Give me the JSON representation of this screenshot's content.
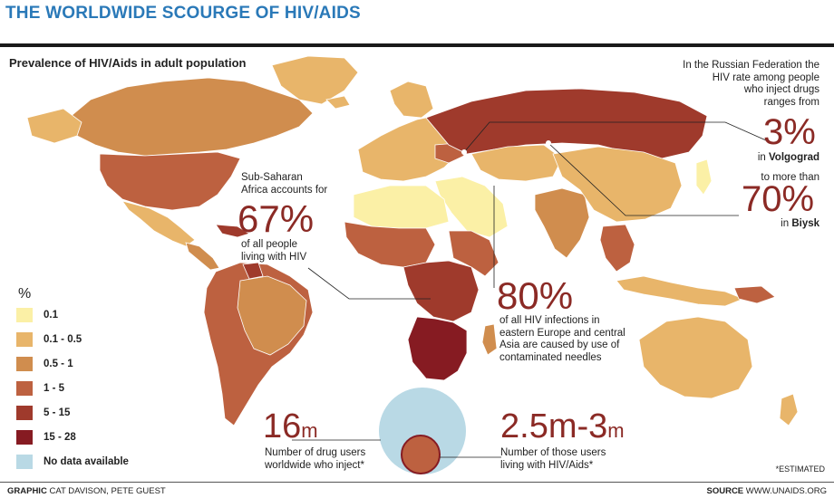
{
  "title": "THE WORLDWIDE SCOURGE OF HIV/AIDS",
  "subtitle": "Prevalence of HIV/Aids in adult population",
  "legend": {
    "unit": "%",
    "items": [
      {
        "label": "0.1",
        "color": "#fbf0a6"
      },
      {
        "label": "0.1 - 0.5",
        "color": "#e8b56a"
      },
      {
        "label": "0.5 - 1",
        "color": "#d08d4e"
      },
      {
        "label": "1 - 5",
        "color": "#bd6140"
      },
      {
        "label": "5 - 15",
        "color": "#9f3a2c"
      },
      {
        "label": "15 - 28",
        "color": "#861b22"
      },
      {
        "label": "No data available",
        "color": "#b9d9e5"
      }
    ]
  },
  "russia": {
    "intro": [
      "In the Russian Federation the",
      "HIV rate among people",
      "who inject drugs",
      "ranges from"
    ],
    "low_value": "3%",
    "low_prefix": "in",
    "low_city": "Volgograd",
    "high_prefix": "to more than",
    "high_value": "70%",
    "high_in": "in",
    "high_city": "Biysk"
  },
  "africa": {
    "intro": [
      "Sub-Saharan",
      "Africa accounts for"
    ],
    "value": "67%",
    "outro": [
      "of all people",
      "living with HIV"
    ]
  },
  "europe": {
    "value": "80%",
    "text": [
      "of all HIV infections in",
      "eastern Europe and central",
      "Asia are caused by use of",
      "contaminated needles"
    ]
  },
  "users": {
    "value": "16",
    "unit": "m",
    "text": [
      "Number of drug users",
      "worldwide who inject*"
    ]
  },
  "living": {
    "value": "2.5m-3",
    "unit": "m",
    "text": [
      "Number of those users",
      "living with HIV/Aids*"
    ]
  },
  "estimated": "*ESTIMATED",
  "footer": {
    "graphic_label": "GRAPHIC",
    "graphic_names": "CAT DAVISON, PETE GUEST",
    "source_label": "SOURCE",
    "source_value": "WWW.UNAIDS.ORG"
  }
}
